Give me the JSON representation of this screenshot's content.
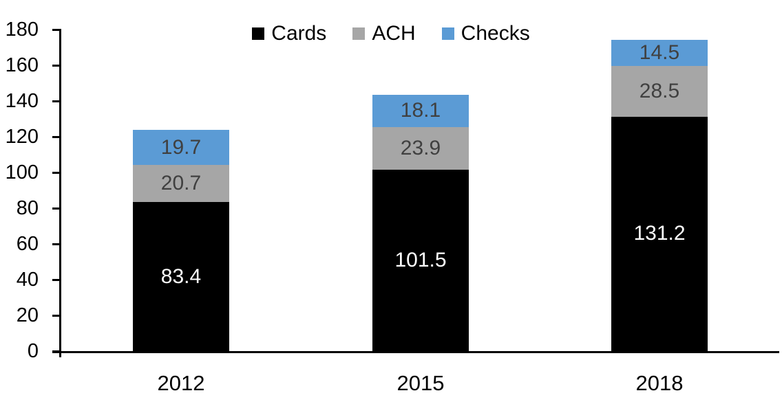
{
  "chart_data": {
    "type": "bar",
    "stacked": true,
    "title": "",
    "categories": [
      "2012",
      "2015",
      "2018"
    ],
    "series": [
      {
        "name": "Cards",
        "color": "#000000",
        "label_color": "#ffffff",
        "values": [
          83.4,
          101.5,
          131.2
        ]
      },
      {
        "name": "ACH",
        "color": "#A6A6A6",
        "label_color": "#404040",
        "values": [
          20.7,
          23.9,
          28.5
        ]
      },
      {
        "name": "Checks",
        "color": "#5B9BD5",
        "label_color": "#404040",
        "values": [
          19.7,
          18.1,
          14.5
        ]
      }
    ],
    "ylim": [
      0,
      180
    ],
    "ytick_step": 20,
    "yticks": [
      "0",
      "20",
      "40",
      "60",
      "80",
      "100",
      "120",
      "140",
      "160",
      "180"
    ],
    "grid": false,
    "legend_position": "top-center",
    "value_labels": true,
    "axis_color": "#000000",
    "background_color": "#ffffff"
  }
}
